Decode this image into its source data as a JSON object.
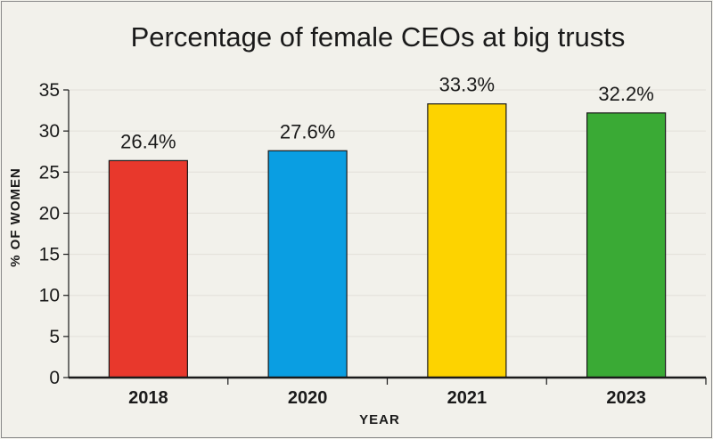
{
  "chart_data": {
    "type": "bar",
    "title": "Percentage of female CEOs at big trusts",
    "xlabel": "YEAR",
    "ylabel": "% OF WOMEN",
    "categories": [
      "2018",
      "2020",
      "2021",
      "2023"
    ],
    "values": [
      26.4,
      27.6,
      33.3,
      32.2
    ],
    "data_labels": [
      "26.4%",
      "27.6%",
      "33.3%",
      "32.2%"
    ],
    "colors": [
      "#e8382c",
      "#0a9ee2",
      "#fdd300",
      "#3aaa35"
    ],
    "ylim": [
      0,
      35
    ],
    "yticks": [
      0,
      5,
      10,
      15,
      20,
      25,
      30,
      35
    ],
    "grid": true
  }
}
